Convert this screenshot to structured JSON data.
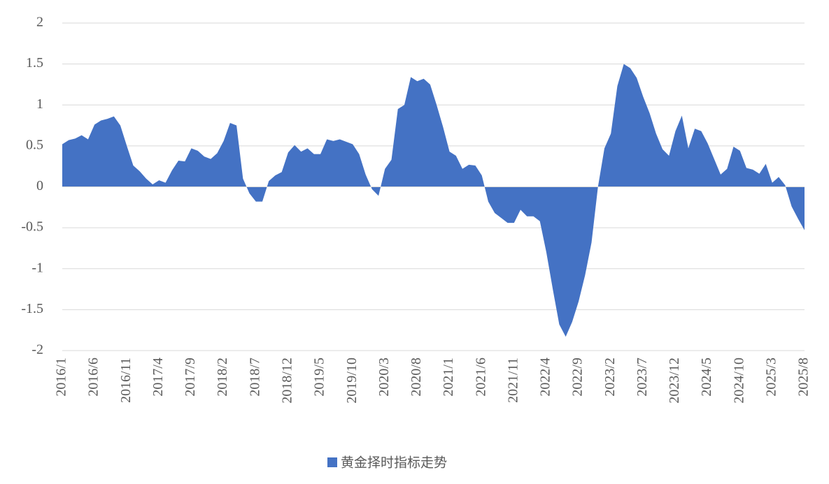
{
  "chart_data": {
    "type": "area",
    "categories": [
      "2016/1",
      null,
      null,
      null,
      null,
      "2016/6",
      null,
      null,
      null,
      null,
      "2016/11",
      null,
      null,
      null,
      null,
      "2017/4",
      null,
      null,
      null,
      null,
      "2017/9",
      null,
      null,
      null,
      null,
      "2018/2",
      null,
      null,
      null,
      null,
      "2018/7",
      null,
      null,
      null,
      null,
      "2018/12",
      null,
      null,
      null,
      null,
      "2019/5",
      null,
      null,
      null,
      null,
      "2019/10",
      null,
      null,
      null,
      null,
      "2020/3",
      null,
      null,
      null,
      null,
      "2020/8",
      null,
      null,
      null,
      null,
      "2021/1",
      null,
      null,
      null,
      null,
      "2021/6",
      null,
      null,
      null,
      null,
      "2021/11",
      null,
      null,
      null,
      null,
      "2022/4",
      null,
      null,
      null,
      null,
      "2022/9",
      null,
      null,
      null,
      null,
      "2023/2",
      null,
      null,
      null,
      null,
      "2023/7",
      null,
      null,
      null,
      null,
      "2023/12",
      null,
      null,
      null,
      null,
      "2024/5",
      null,
      null,
      null,
      null,
      "2024/10",
      null,
      null,
      null,
      null,
      "2025/3",
      null,
      null,
      null,
      null,
      "2025/8"
    ],
    "series": [
      {
        "name": "黄金择时指标走势",
        "color": "#4472c4",
        "values": [
          0.52,
          0.57,
          0.59,
          0.63,
          0.58,
          0.76,
          0.81,
          0.83,
          0.86,
          0.75,
          0.5,
          0.26,
          0.19,
          0.1,
          0.03,
          0.08,
          0.05,
          0.2,
          0.32,
          0.31,
          0.47,
          0.44,
          0.37,
          0.34,
          0.41,
          0.56,
          0.78,
          0.75,
          0.1,
          -0.08,
          -0.18,
          -0.18,
          0.07,
          0.14,
          0.18,
          0.42,
          0.51,
          0.43,
          0.47,
          0.4,
          0.4,
          0.58,
          0.56,
          0.58,
          0.55,
          0.52,
          0.4,
          0.15,
          -0.03,
          -0.11,
          0.22,
          0.33,
          0.95,
          1.0,
          1.34,
          1.29,
          1.32,
          1.25,
          1.0,
          0.73,
          0.43,
          0.38,
          0.22,
          0.27,
          0.26,
          0.14,
          -0.18,
          -0.32,
          -0.38,
          -0.44,
          -0.44,
          -0.28,
          -0.36,
          -0.36,
          -0.42,
          -0.8,
          -1.25,
          -1.68,
          -1.83,
          -1.65,
          -1.4,
          -1.08,
          -0.68,
          0.0,
          0.47,
          0.65,
          1.23,
          1.5,
          1.45,
          1.33,
          1.1,
          0.9,
          0.65,
          0.46,
          0.38,
          0.68,
          0.87,
          0.47,
          0.71,
          0.68,
          0.53,
          0.34,
          0.15,
          0.22,
          0.49,
          0.44,
          0.23,
          0.21,
          0.16,
          0.28,
          0.05,
          0.12,
          0.02,
          -0.24,
          -0.39,
          -0.53
        ]
      }
    ],
    "ylim": [
      -2,
      2
    ],
    "yticks": [
      -2,
      -1.5,
      -1,
      -0.5,
      0,
      0.5,
      1,
      1.5,
      2
    ],
    "grid": true,
    "legend": "bottom"
  }
}
